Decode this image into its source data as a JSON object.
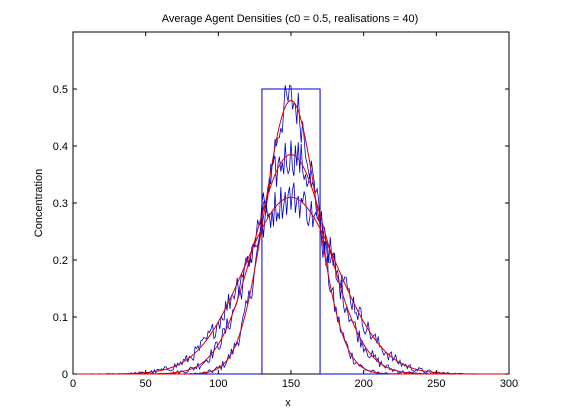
{
  "chart_data": {
    "type": "line",
    "title": "Average Agent Densities (c0 = 0.5, realisations = 40)",
    "xlabel": "x",
    "ylabel": "Concentration",
    "xlim": [
      0,
      300
    ],
    "ylim": [
      0,
      0.6
    ],
    "xticks": [
      0,
      50,
      100,
      150,
      200,
      250,
      300
    ],
    "yticks": [
      0,
      0.1,
      0.2,
      0.3,
      0.4,
      0.5
    ],
    "grid": false,
    "legend": "none",
    "colors": {
      "simulation": "#0000cc",
      "solution": "#dd0000",
      "initial": "#0000cc"
    },
    "initial_condition": {
      "x_start": 130,
      "x_end": 170,
      "value": 0.5
    },
    "profiles": [
      {
        "center": 150,
        "peak": 0.48,
        "sigma": 18
      },
      {
        "center": 150,
        "peak": 0.385,
        "sigma": 25
      },
      {
        "center": 150,
        "peak": 0.31,
        "sigma": 32
      }
    ]
  }
}
